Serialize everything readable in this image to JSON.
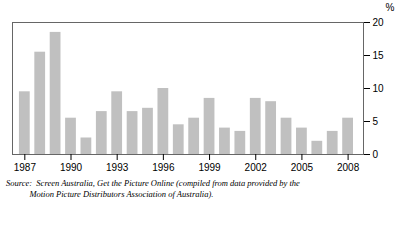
{
  "chart_data": {
    "type": "bar",
    "x": [
      1987,
      1988,
      1989,
      1990,
      1991,
      1992,
      1993,
      1994,
      1995,
      1996,
      1997,
      1998,
      1999,
      2000,
      2001,
      2002,
      2003,
      2004,
      2005,
      2006,
      2007,
      2008
    ],
    "values": [
      9.5,
      15.5,
      18.5,
      5.5,
      2.5,
      6.5,
      9.5,
      6.5,
      7.0,
      10.0,
      4.5,
      5.5,
      8.5,
      4.0,
      3.5,
      8.5,
      8.0,
      5.5,
      4.0,
      2.0,
      3.5,
      5.5
    ],
    "color": "#c0c0c0",
    "xlim": [
      1986.2,
      2009.0
    ],
    "xticks": [
      1987,
      1990,
      1993,
      1996,
      1999,
      2002,
      2005,
      2008
    ],
    "ylim": [
      0,
      20
    ],
    "yticks": [
      0,
      5,
      10,
      15,
      20
    ],
    "ylabel": "%",
    "grid": false,
    "annotations": [
      "Source:  Screen Australia, Get the Picture Online (compiled from data provided by the",
      "           Motion Picture Distributors Association of Australia)."
    ]
  }
}
